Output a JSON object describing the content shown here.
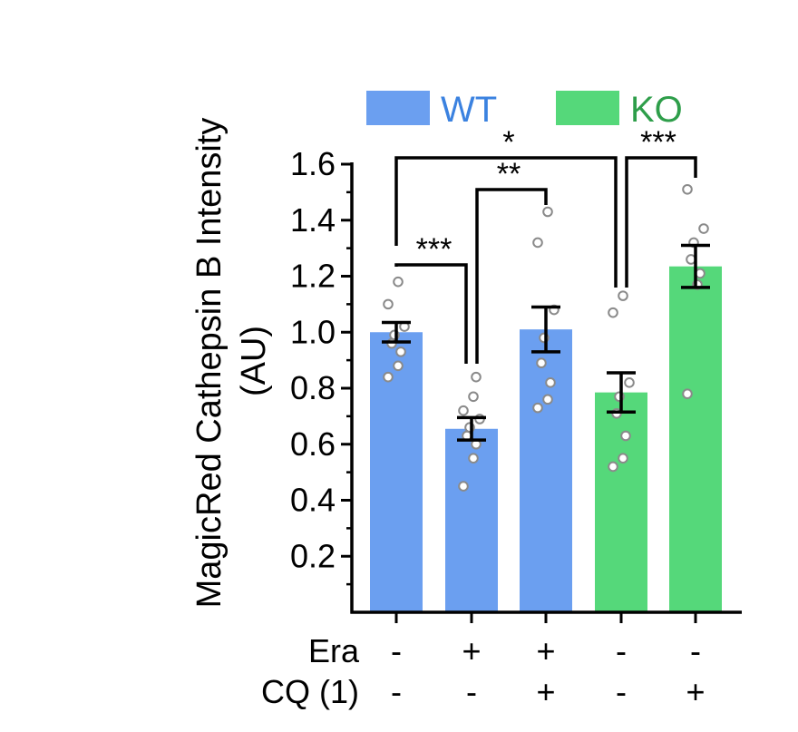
{
  "chart_data": {
    "type": "bar",
    "ylabel": "MagicRed Cathepsin B Intensity",
    "ylabel_unit": "(AU)",
    "ylim": [
      0,
      1.6
    ],
    "yticks": [
      0.2,
      0.4,
      0.6,
      0.8,
      1.0,
      1.2,
      1.4,
      1.6
    ],
    "ytick_labels": [
      "0.2",
      "0.4",
      "0.6",
      "0.8",
      "1.0",
      "1.2",
      "1.4",
      "1.6"
    ],
    "legend": [
      {
        "label": "WT",
        "color": "#6b9ff0",
        "text_color": "#3b82e0"
      },
      {
        "label": "KO",
        "color": "#55d87a",
        "text_color": "#2e9e4a"
      }
    ],
    "treatments": [
      {
        "label": "Era",
        "values": [
          "-",
          "+",
          "+",
          "-",
          "-"
        ]
      },
      {
        "label": "CQ (1)",
        "values": [
          "-",
          "-",
          "+",
          "-",
          "+"
        ]
      }
    ],
    "bars": [
      {
        "group": "WT",
        "value": 1.0,
        "error": 0.035,
        "points": [
          0.84,
          0.88,
          0.93,
          0.96,
          0.99,
          1.02,
          1.1,
          1.18
        ]
      },
      {
        "group": "WT",
        "value": 0.655,
        "error": 0.04,
        "points": [
          0.45,
          0.55,
          0.6,
          0.63,
          0.66,
          0.69,
          0.72,
          0.77,
          0.84
        ]
      },
      {
        "group": "WT",
        "value": 1.01,
        "error": 0.08,
        "points": [
          0.73,
          0.76,
          0.82,
          0.89,
          0.98,
          1.08,
          1.32,
          1.43
        ]
      },
      {
        "group": "KO",
        "value": 0.785,
        "error": 0.07,
        "points": [
          0.52,
          0.55,
          0.63,
          0.71,
          0.77,
          0.82,
          1.07,
          1.13
        ]
      },
      {
        "group": "KO",
        "value": 1.235,
        "error": 0.075,
        "points": [
          0.78,
          1.17,
          1.21,
          1.26,
          1.32,
          1.37,
          1.51
        ]
      }
    ],
    "significance": [
      {
        "label": "***",
        "from": 0,
        "to": 1
      },
      {
        "label": "**",
        "from": 1,
        "to": 2
      },
      {
        "label": "*",
        "from": 0,
        "to": 3
      },
      {
        "label": "***",
        "from": 3,
        "to": 4
      }
    ]
  }
}
